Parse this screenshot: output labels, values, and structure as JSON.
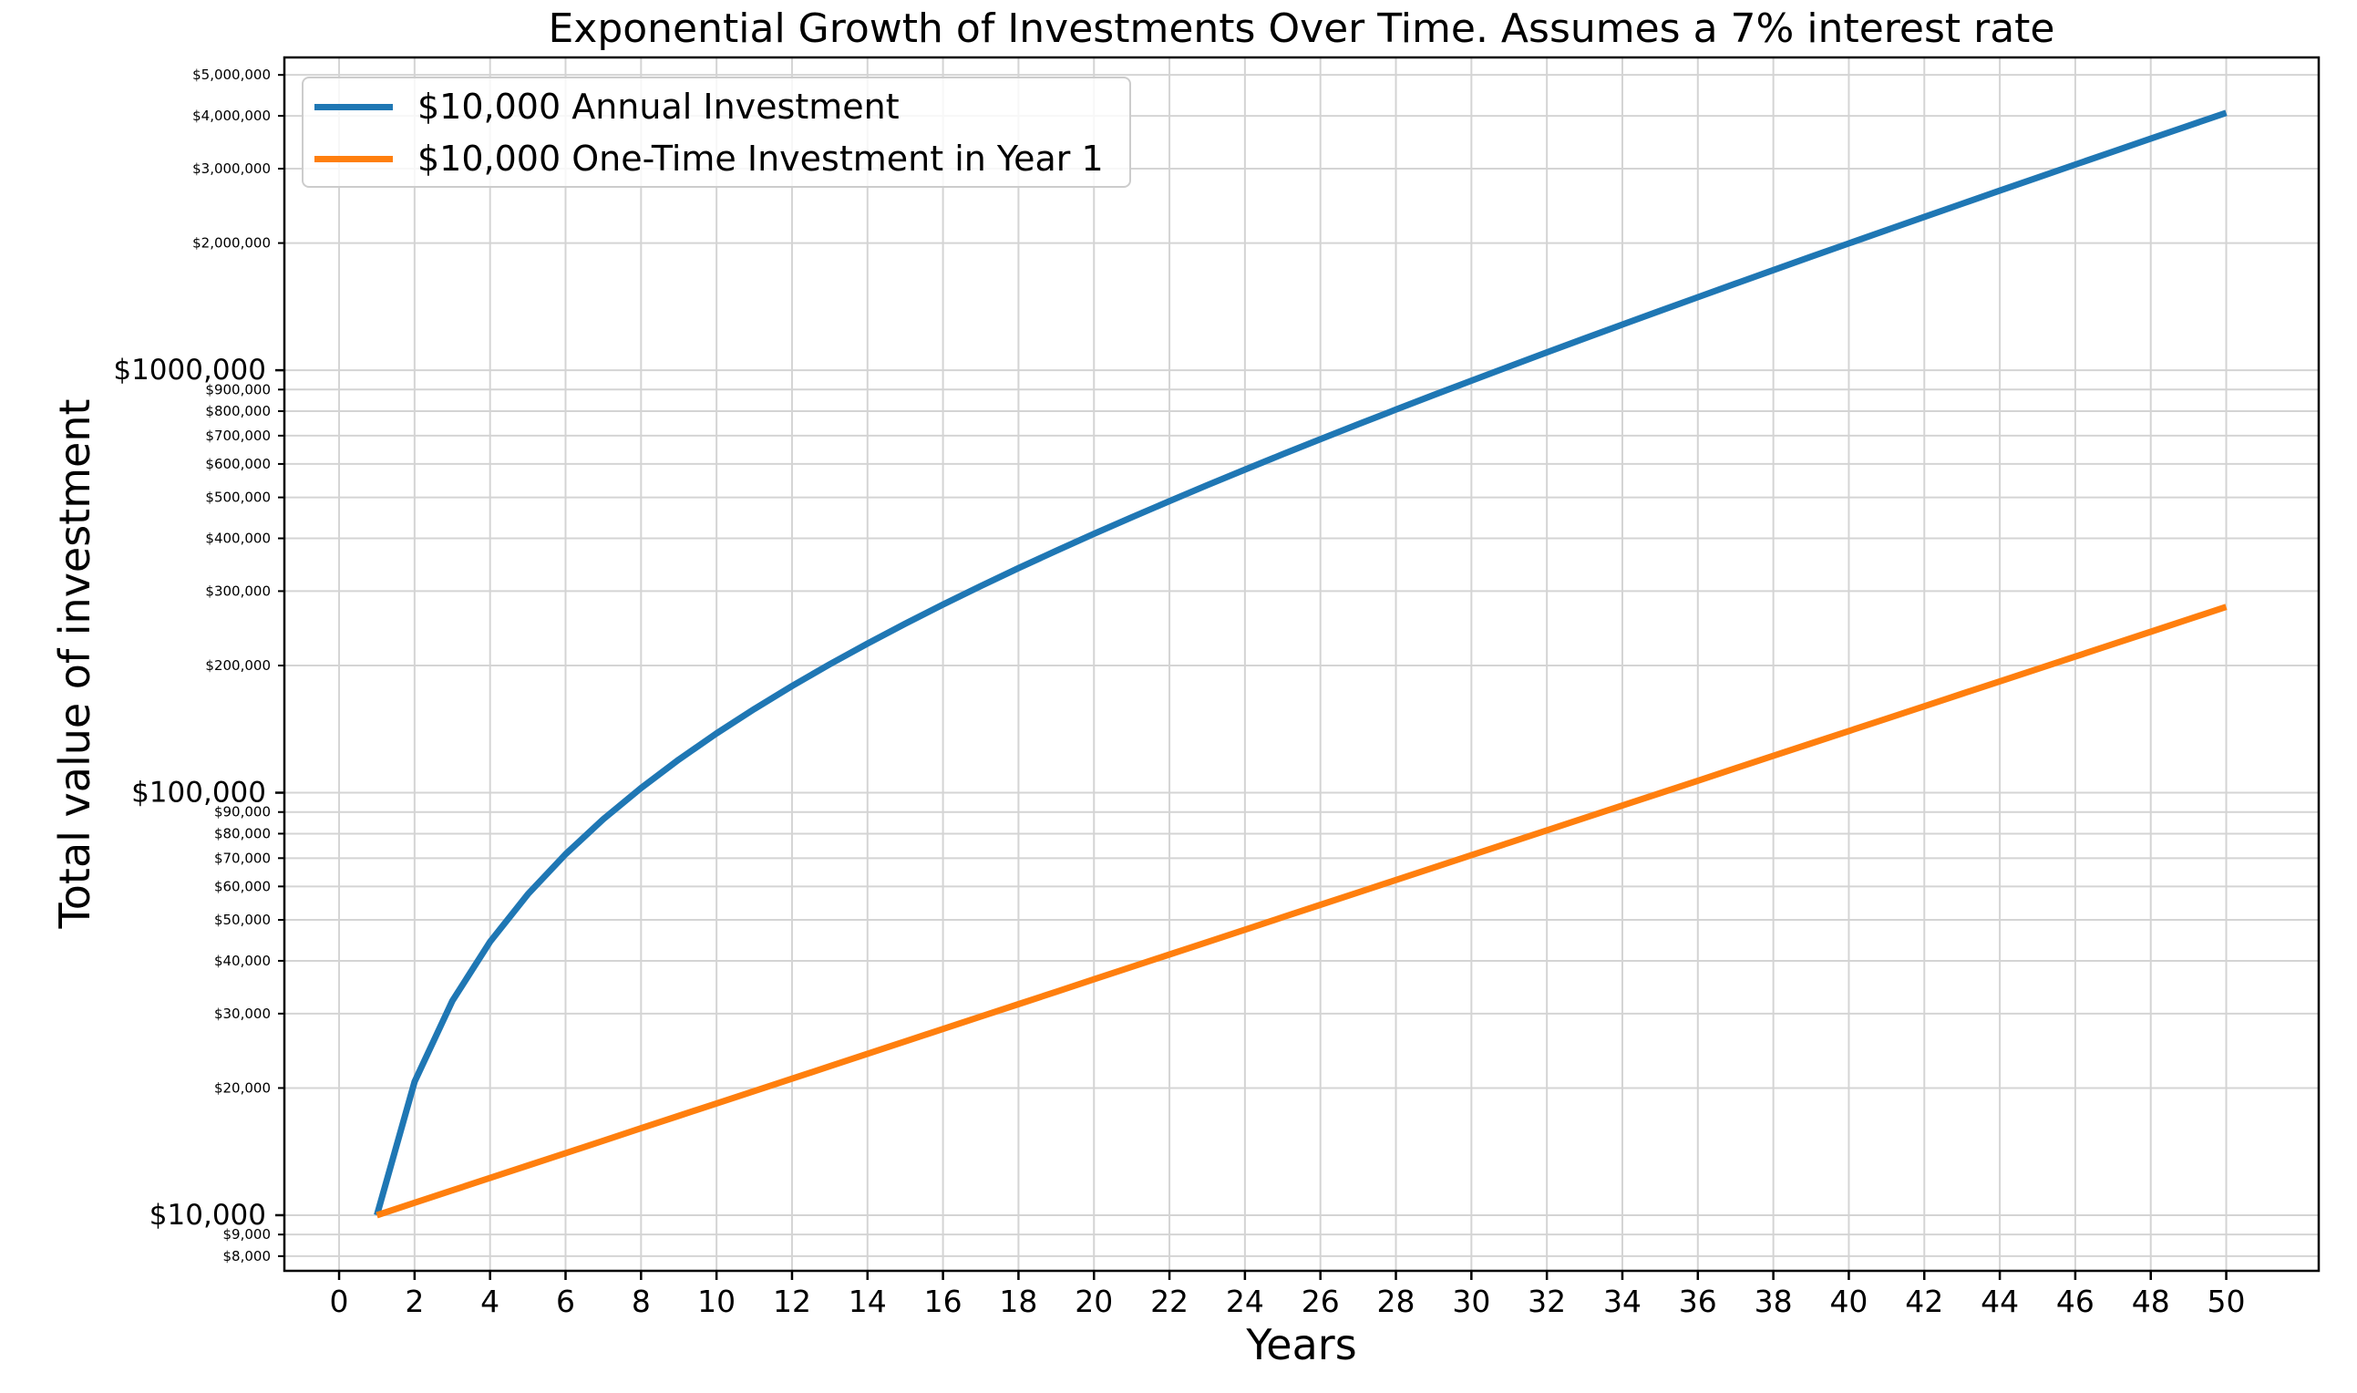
{
  "chart": {
    "title": "Exponential Growth of Investments Over Time. Assumes a 7% interest rate",
    "xlabel": "Years",
    "ylabel": "Total value of investment",
    "legend": [
      {
        "label": "$10,000 Annual Investment",
        "color": "#1f77b4"
      },
      {
        "label": "$10,000 One-Time Investment in Year 1",
        "color": "#ff7f0e"
      }
    ]
  },
  "colors": {
    "series_annual": "#1f77b4",
    "series_one_time": "#ff7f0e",
    "grid": "#d4d4d4",
    "axis": "#000000"
  },
  "chart_data": {
    "type": "line",
    "title": "Exponential Growth of Investments Over Time. Assumes a 7% interest rate",
    "xlabel": "Years",
    "ylabel": "Total value of investment",
    "yscale": "log",
    "xlim": [
      -1.45,
      52.45
    ],
    "ylim": [
      7384,
      5500000
    ],
    "grid": true,
    "legend_position": "upper left",
    "x_ticks": [
      0,
      2,
      4,
      6,
      8,
      10,
      12,
      14,
      16,
      18,
      20,
      22,
      24,
      26,
      28,
      30,
      32,
      34,
      36,
      38,
      40,
      42,
      44,
      46,
      48,
      50
    ],
    "y_major_ticks": [
      {
        "value": 10000,
        "label": "$10,000"
      },
      {
        "value": 100000,
        "label": "$100,000"
      },
      {
        "value": 1000000,
        "label": "$1000,000"
      }
    ],
    "y_minor_ticks": [
      {
        "value": 8000,
        "label": "$8,000"
      },
      {
        "value": 9000,
        "label": "$9,000"
      },
      {
        "value": 20000,
        "label": "$20,000"
      },
      {
        "value": 30000,
        "label": "$30,000"
      },
      {
        "value": 40000,
        "label": "$40,000"
      },
      {
        "value": 50000,
        "label": "$50,000"
      },
      {
        "value": 60000,
        "label": "$60,000"
      },
      {
        "value": 70000,
        "label": "$70,000"
      },
      {
        "value": 80000,
        "label": "$80,000"
      },
      {
        "value": 90000,
        "label": "$90,000"
      },
      {
        "value": 200000,
        "label": "$200,000"
      },
      {
        "value": 300000,
        "label": "$300,000"
      },
      {
        "value": 400000,
        "label": "$400,000"
      },
      {
        "value": 500000,
        "label": "$500,000"
      },
      {
        "value": 600000,
        "label": "$600,000"
      },
      {
        "value": 700000,
        "label": "$700,000"
      },
      {
        "value": 800000,
        "label": "$800,000"
      },
      {
        "value": 900000,
        "label": "$900,000"
      },
      {
        "value": 2000000,
        "label": "$2,000,000"
      },
      {
        "value": 3000000,
        "label": "$3,000,000"
      },
      {
        "value": 4000000,
        "label": "$4,000,000"
      },
      {
        "value": 5000000,
        "label": "$5,000,000"
      }
    ],
    "x": [
      1,
      2,
      3,
      4,
      5,
      6,
      7,
      8,
      9,
      10,
      11,
      12,
      13,
      14,
      15,
      16,
      17,
      18,
      19,
      20,
      21,
      22,
      23,
      24,
      25,
      26,
      27,
      28,
      29,
      30,
      31,
      32,
      33,
      34,
      35,
      36,
      37,
      38,
      39,
      40,
      41,
      42,
      43,
      44,
      45,
      46,
      47,
      48,
      49,
      50
    ],
    "series": [
      {
        "name": "$10,000 Annual Investment",
        "color": "#1f77b4",
        "values": [
          10000,
          20700,
          32149,
          44399,
          57507,
          71533,
          86540,
          102598,
          119780,
          138164,
          157836,
          178885,
          201406,
          225505,
          251290,
          278881,
          308402,
          339990,
          373790,
          409955,
          448652,
          490057,
          534361,
          581767,
          632490,
          686765,
          744838,
          806977,
          873465,
          944608,
          1020730,
          1102182,
          1189334,
          1282588,
          1382369,
          1489135,
          1603374,
          1725610,
          1856403,
          1996351,
          2146096,
          2306322,
          2477765,
          2661209,
          2857493,
          3067518,
          3292244,
          3532701,
          3789990,
          4065289
        ]
      },
      {
        "name": "$10,000 One-Time Investment in Year 1",
        "color": "#ff7f0e",
        "values": [
          10000,
          10700,
          11449,
          12250,
          13108,
          14026,
          15007,
          16058,
          17182,
          18385,
          19672,
          21049,
          22522,
          24098,
          25785,
          27590,
          29522,
          31588,
          33799,
          36165,
          38697,
          41406,
          44304,
          47405,
          50724,
          54274,
          58074,
          62139,
          66488,
          71143,
          76123,
          81451,
          87153,
          93253,
          99781,
          106766,
          114239,
          122236,
          130793,
          139948,
          149745,
          160227,
          171443,
          183444,
          196285,
          210025,
          224726,
          240457,
          257289,
          275299
        ]
      }
    ]
  }
}
